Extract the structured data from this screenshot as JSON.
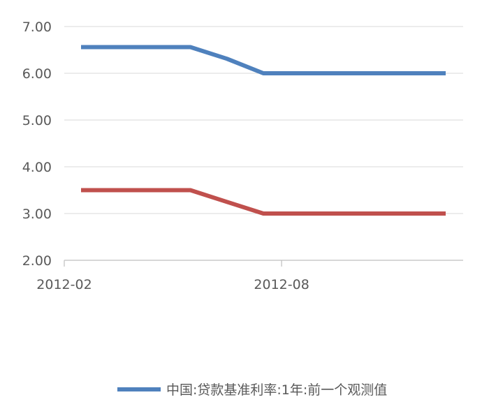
{
  "chart_data": {
    "type": "line",
    "x": [
      "2012-02",
      "2012-03",
      "2012-04",
      "2012-05",
      "2012-06",
      "2012-07",
      "2012-08",
      "2012-09",
      "2012-10",
      "2012-11",
      "2012-12"
    ],
    "x_tick_labels": [
      "2012-02",
      "2012-08"
    ],
    "ylim": [
      2.0,
      7.0
    ],
    "y_tick_labels": [
      "2.00",
      "3.00",
      "4.00",
      "5.00",
      "6.00",
      "7.00"
    ],
    "y_ticks": [
      2,
      3,
      4,
      5,
      6,
      7
    ],
    "grid": true,
    "legend_position": "bottom",
    "series": [
      {
        "name": "中国:贷款基准利率:1年:前一个观测值",
        "color": "#4F81BD",
        "values": [
          6.56,
          6.56,
          6.56,
          6.56,
          6.31,
          6.0,
          6.0,
          6.0,
          6.0,
          6.0,
          6.0
        ]
      },
      {
        "color": "#C0504D",
        "values": [
          3.5,
          3.5,
          3.5,
          3.5,
          3.25,
          3.0,
          3.0,
          3.0,
          3.0,
          3.0,
          3.0
        ]
      }
    ]
  }
}
